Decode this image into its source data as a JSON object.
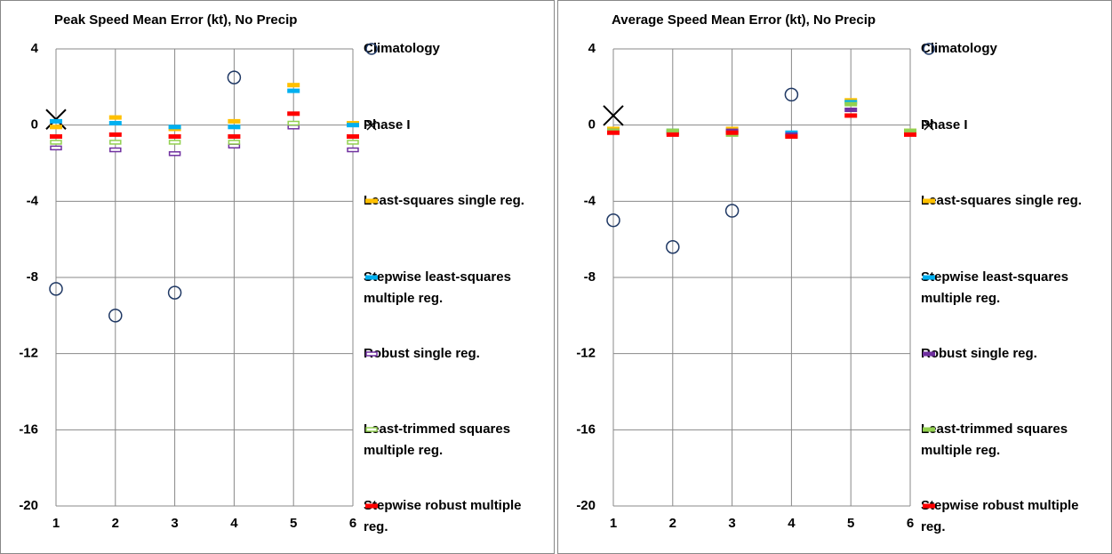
{
  "chart_data": [
    {
      "type": "scatter",
      "title": "Peak Speed Mean Error (kt), No Precip",
      "x": [
        1,
        2,
        3,
        4,
        5,
        6
      ],
      "xlim": [
        1,
        6
      ],
      "xticks": [
        1,
        2,
        3,
        4,
        5,
        6
      ],
      "ylim": [
        -20,
        4
      ],
      "yticks": [
        -20,
        -16,
        -12,
        -8,
        -4,
        0,
        4
      ],
      "grid": true,
      "series": [
        {
          "name": "Climatology",
          "color": "#1f3864",
          "marker": "circle",
          "values": [
            -8.6,
            -10.0,
            -8.8,
            2.5,
            null,
            null
          ]
        },
        {
          "name": "Phase I",
          "color": "#000000",
          "marker": "x",
          "values": [
            0.3,
            null,
            null,
            null,
            null,
            null
          ]
        },
        {
          "name": "Least-squares single reg.",
          "color": "#ffc000",
          "marker": "dash",
          "values": [
            -0.1,
            0.4,
            -0.2,
            0.2,
            2.1,
            0.1
          ]
        },
        {
          "name": "Stepwise least-squares multiple reg.",
          "color": "#00b0f0",
          "marker": "dash",
          "values": [
            0.2,
            0.1,
            -0.1,
            -0.1,
            1.8,
            0
          ]
        },
        {
          "name": "Robust single reg.",
          "color": "#7030a0",
          "marker": "hollow-dash",
          "values": [
            -1.2,
            -1.3,
            -1.5,
            -1.1,
            -0.1,
            -1.3
          ]
        },
        {
          "name": "Least-trimmed squares multiple reg.",
          "color": "#92d050",
          "marker": "hollow-dash",
          "values": [
            -0.9,
            -0.9,
            -0.9,
            -0.9,
            0.1,
            -0.9
          ]
        },
        {
          "name": "Stepwise robust multiple reg.",
          "color": "#ff0000",
          "marker": "dash",
          "values": [
            -0.6,
            -0.5,
            -0.6,
            -0.6,
            0.6,
            -0.6
          ]
        }
      ]
    },
    {
      "type": "scatter",
      "title": "Average Speed Mean  Error (kt), No Precip",
      "x": [
        1,
        2,
        3,
        4,
        5,
        6
      ],
      "xlim": [
        1,
        6
      ],
      "xticks": [
        1,
        2,
        3,
        4,
        5,
        6
      ],
      "ylim": [
        -20,
        4
      ],
      "yticks": [
        -20,
        -16,
        -12,
        -8,
        -4,
        0,
        4
      ],
      "grid": true,
      "series": [
        {
          "name": "Climatology",
          "color": "#1f3864",
          "marker": "circle",
          "values": [
            -5.0,
            -6.4,
            -4.5,
            1.6,
            null,
            null
          ]
        },
        {
          "name": "Phase I",
          "color": "#000000",
          "marker": "x",
          "values": [
            0.5,
            null,
            null,
            null,
            null,
            null
          ]
        },
        {
          "name": "Least-squares single reg.",
          "color": "#ffc000",
          "marker": "dash",
          "values": [
            -0.2,
            -0.3,
            -0.2,
            -0.6,
            1.3,
            -0.3
          ]
        },
        {
          "name": "Stepwise least-squares multiple reg.",
          "color": "#00b0f0",
          "marker": "dash",
          "values": [
            -0.3,
            -0.3,
            -0.4,
            -0.4,
            1.2,
            -0.4
          ]
        },
        {
          "name": "Robust single reg.",
          "color": "#7030a0",
          "marker": "dash",
          "values": [
            -0.3,
            -0.4,
            -0.3,
            -0.5,
            0.8,
            -0.4
          ]
        },
        {
          "name": "Least-trimmed squares multiple reg.",
          "color": "#92d050",
          "marker": "dash",
          "values": [
            -0.3,
            -0.3,
            -0.5,
            -0.6,
            1.1,
            -0.3
          ]
        },
        {
          "name": "Stepwise robust multiple reg.",
          "color": "#ff0000",
          "marker": "dash",
          "values": [
            -0.4,
            -0.5,
            -0.4,
            -0.6,
            0.5,
            -0.5
          ]
        }
      ]
    }
  ]
}
